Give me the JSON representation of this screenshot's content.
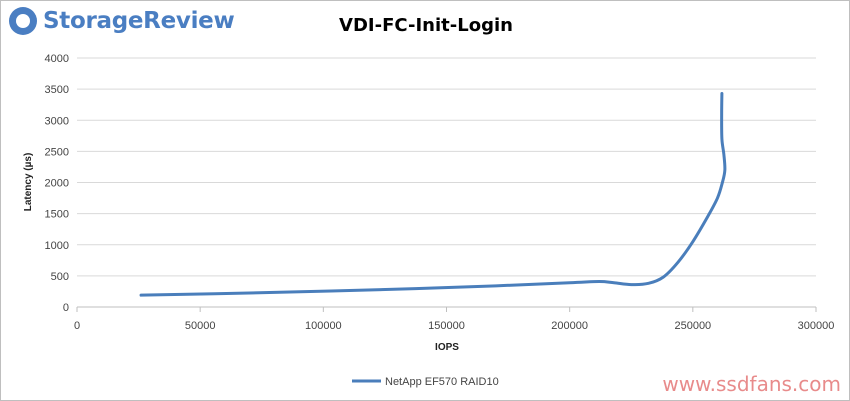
{
  "brand": {
    "logo_text": "StorageReview",
    "accent_color": "#4a7ec2"
  },
  "watermark": "www.ssdfans.com",
  "chart_data": {
    "type": "line",
    "title": "VDI-FC-Init-Login",
    "xlabel": "IOPS",
    "ylabel": "Latency (µs)",
    "xlim": [
      0,
      300000
    ],
    "ylim": [
      0,
      4000
    ],
    "x_ticks": [
      0,
      50000,
      100000,
      150000,
      200000,
      250000,
      300000
    ],
    "y_ticks": [
      0,
      500,
      1000,
      1500,
      2000,
      2500,
      3000,
      3500,
      4000
    ],
    "grid": true,
    "legend_position": "bottom",
    "series": [
      {
        "name": "NetApp EF570 RAID10",
        "color": "#4a7ebb",
        "x": [
          26000,
          70000,
          120000,
          170000,
          200000,
          212000,
          218000,
          225000,
          232000,
          238000,
          244000,
          250000,
          256000,
          260000,
          262000,
          263000,
          262600,
          261800,
          261700,
          261800
        ],
        "y": [
          190,
          225,
          275,
          340,
          390,
          410,
          390,
          360,
          380,
          480,
          720,
          1050,
          1450,
          1750,
          2000,
          2200,
          2450,
          2700,
          3100,
          3430
        ]
      }
    ]
  }
}
